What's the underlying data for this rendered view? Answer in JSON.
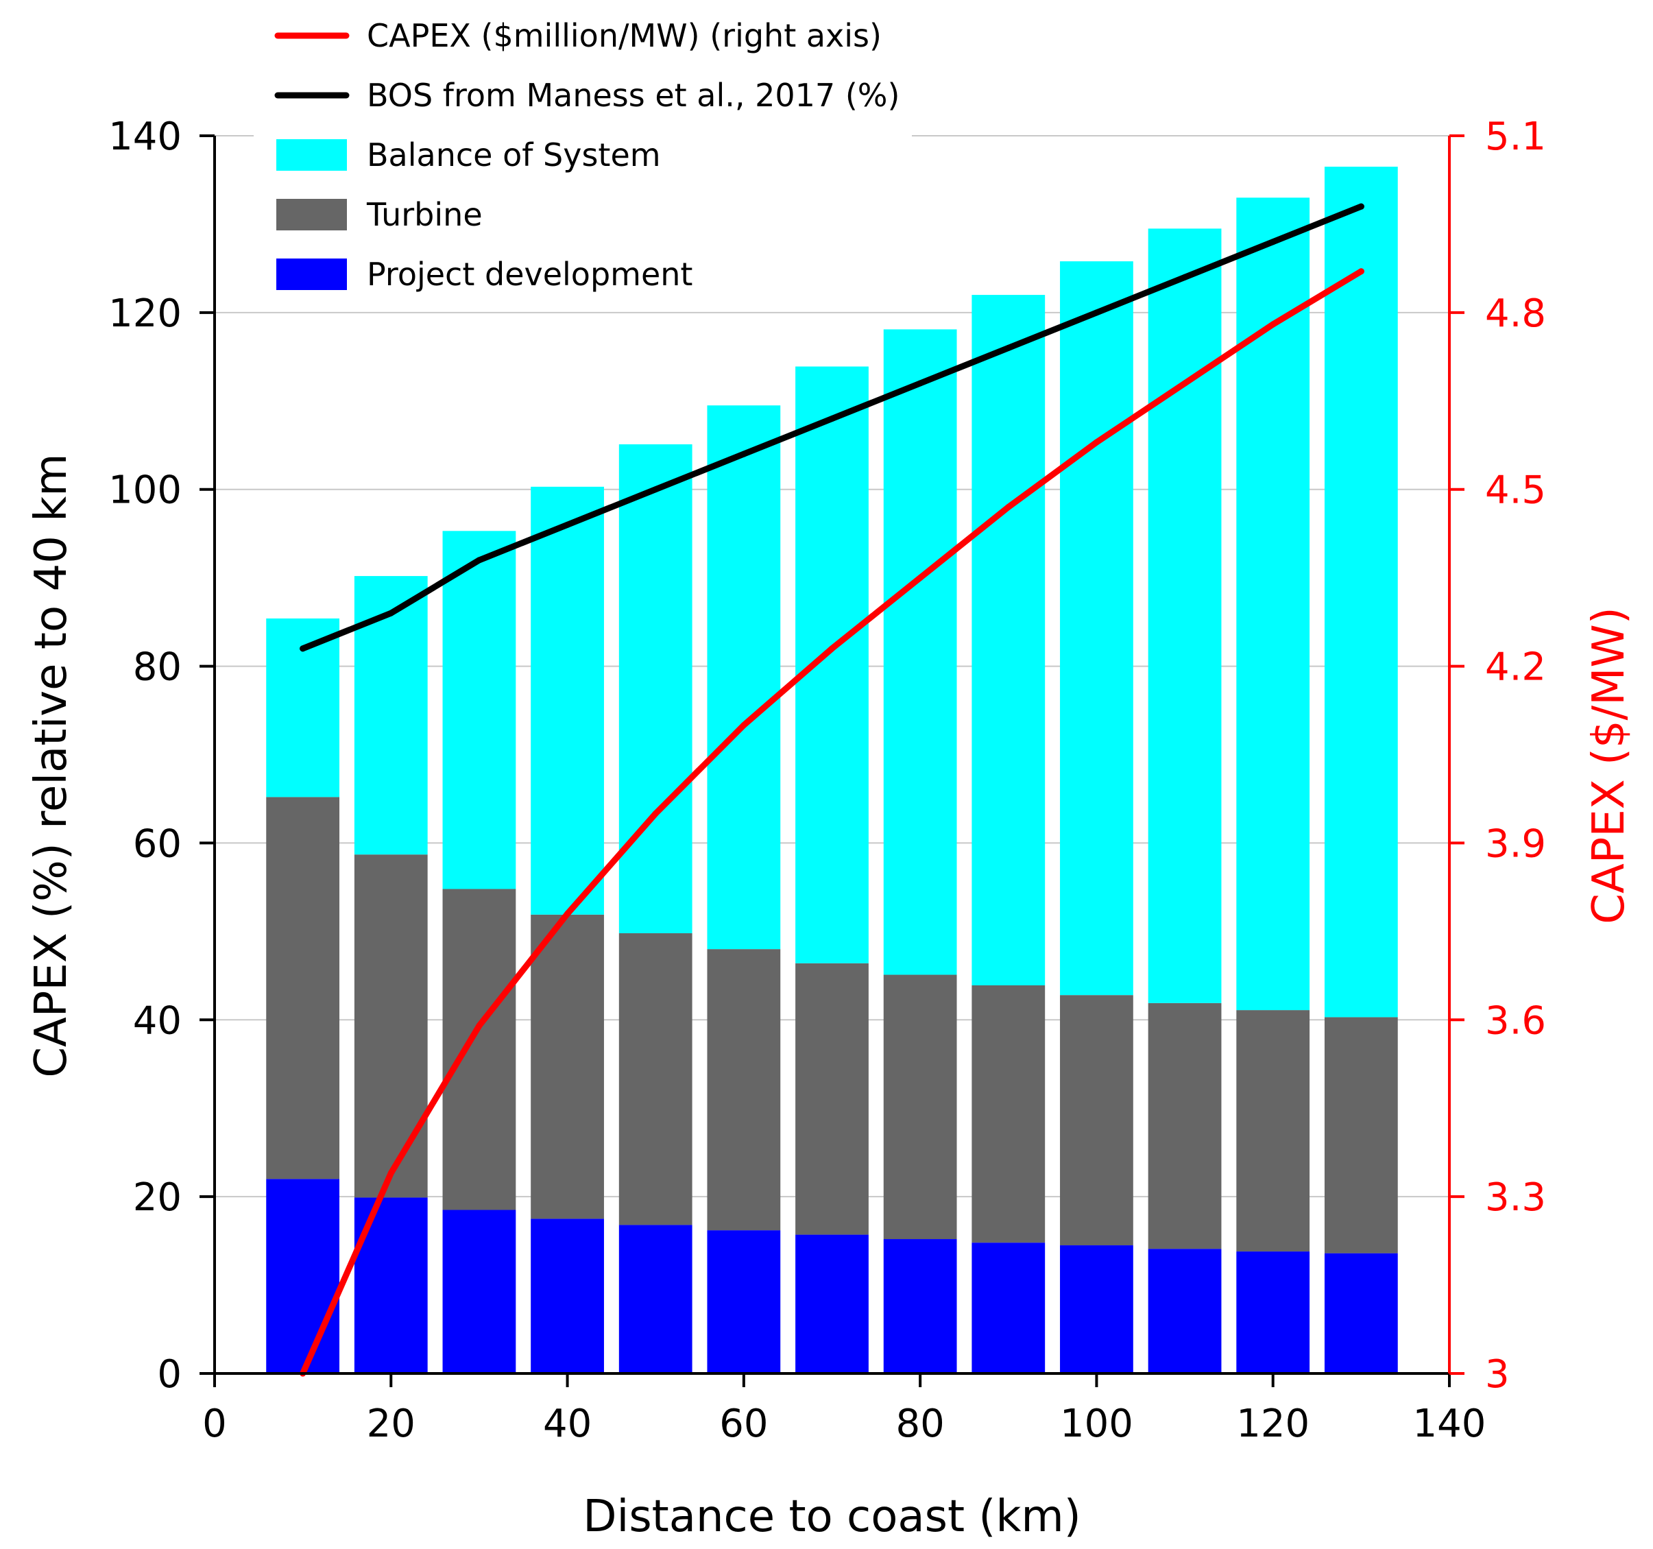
{
  "chart_data": {
    "type": "bar",
    "stacked": true,
    "x": [
      10,
      20,
      30,
      40,
      50,
      60,
      70,
      80,
      90,
      100,
      110,
      120,
      130
    ],
    "xlabel": "Distance to coast (km)",
    "xlim": [
      0,
      140
    ],
    "xticks": [
      0,
      20,
      40,
      60,
      80,
      100,
      120,
      140
    ],
    "ylabel": "CAPEX (%) relative to 40 km",
    "ylim": [
      0,
      140
    ],
    "yticks": [
      0,
      20,
      40,
      60,
      80,
      100,
      120,
      140
    ],
    "y2label": "CAPEX ($/MW)",
    "y2lim": [
      3,
      5.1
    ],
    "y2ticks": [
      "3",
      "3.3",
      "3.6",
      "3.9",
      "4.2",
      "4.5",
      "4.8",
      "5.1"
    ],
    "grid": true,
    "legend_position": "top-left",
    "series": [
      {
        "name": "Project development",
        "kind": "bar",
        "color": "#0000ff",
        "values": [
          22.0,
          19.9,
          18.5,
          17.5,
          16.8,
          16.2,
          15.7,
          15.2,
          14.8,
          14.5,
          14.1,
          13.8,
          13.6
        ]
      },
      {
        "name": "Turbine",
        "kind": "bar",
        "color": "#666666",
        "values": [
          43.2,
          38.8,
          36.3,
          34.4,
          33.0,
          31.8,
          30.7,
          29.9,
          29.1,
          28.3,
          27.8,
          27.3,
          26.7
        ]
      },
      {
        "name": "Balance of System",
        "kind": "bar",
        "color": "#00ffff",
        "values": [
          20.2,
          31.5,
          40.5,
          48.4,
          55.3,
          61.5,
          67.5,
          73.0,
          78.1,
          83.0,
          87.6,
          91.9,
          96.2
        ]
      },
      {
        "name": "BOS from Maness et al., 2017 (%)",
        "kind": "line",
        "axis": "left",
        "color": "#000000",
        "values": [
          82,
          86,
          92,
          96,
          100,
          104,
          108,
          112,
          116,
          120,
          124,
          128,
          132
        ]
      },
      {
        "name": "CAPEX ($million/MW) (right axis)",
        "kind": "line",
        "axis": "right",
        "color": "#ff0000",
        "values": [
          3.0,
          3.34,
          3.59,
          3.78,
          3.95,
          4.1,
          4.23,
          4.35,
          4.47,
          4.58,
          4.68,
          4.78,
          4.87
        ]
      }
    ],
    "legend_order": [
      "CAPEX ($million/MW) (right axis)",
      "BOS from Maness et al., 2017 (%)",
      "Balance of System",
      "Turbine",
      "Project development"
    ]
  }
}
